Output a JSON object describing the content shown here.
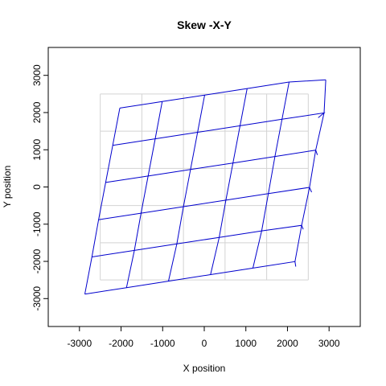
{
  "chart_data": {
    "type": "line",
    "title": "Skew -X-Y",
    "xlabel": "X position",
    "ylabel": "Y position",
    "xlim": [
      -3750,
      3750
    ],
    "ylim": [
      -3750,
      3750
    ],
    "xticks": [
      -3000,
      -2000,
      -1000,
      0,
      1000,
      2000,
      3000
    ],
    "yticks": [
      -3000,
      -2000,
      -1000,
      0,
      1000,
      2000,
      3000
    ],
    "xtick_labels": [
      "-3000",
      "-2000",
      "-1000",
      "0",
      "1000",
      "2000",
      "3000"
    ],
    "ytick_labels": [
      "-3000",
      "-2000",
      "-1000",
      "0",
      "1000",
      "2000",
      "3000"
    ],
    "grid_colors": {
      "reference": "#d3d3d3",
      "skewed": "#0000cd"
    },
    "reference_grid": {
      "x": [
        -2500,
        -1500,
        -500,
        500,
        1500,
        2500
      ],
      "y": [
        -2500,
        -1500,
        -500,
        500,
        1500,
        2500
      ]
    },
    "skewed_grid": {
      "rows": [
        [
          [
            -2870,
            -2880
          ],
          [
            -1870,
            -2705
          ],
          [
            -860,
            -2530
          ],
          [
            150,
            -2355
          ],
          [
            1170,
            -2180
          ],
          [
            2180,
            -2005
          ],
          [
            2200,
            -2140
          ]
        ],
        [
          [
            -2700,
            -1880
          ],
          [
            -1680,
            -1705
          ],
          [
            -660,
            -1530
          ],
          [
            360,
            -1355
          ],
          [
            1380,
            -1180
          ],
          [
            2340,
            -1030
          ],
          [
            2380,
            -1140
          ]
        ],
        [
          [
            -2540,
            -880
          ],
          [
            -1520,
            -705
          ],
          [
            -500,
            -530
          ],
          [
            520,
            -355
          ],
          [
            1540,
            -180
          ],
          [
            2530,
            -10
          ],
          [
            2580,
            -140
          ]
        ],
        [
          [
            -2370,
            120
          ],
          [
            -1350,
            295
          ],
          [
            -330,
            470
          ],
          [
            690,
            645
          ],
          [
            1700,
            820
          ],
          [
            2680,
            990
          ],
          [
            2720,
            860
          ]
        ],
        [
          [
            -2200,
            1120
          ],
          [
            -1180,
            1295
          ],
          [
            -160,
            1470
          ],
          [
            860,
            1645
          ],
          [
            1870,
            1820
          ],
          [
            2880,
            1990
          ],
          [
            2740,
            1860
          ]
        ],
        [
          [
            -2030,
            2120
          ],
          [
            -1010,
            2295
          ],
          [
            10,
            2470
          ],
          [
            1030,
            2645
          ],
          [
            2040,
            2820
          ],
          [
            2920,
            2880
          ]
        ]
      ],
      "cols": [
        [
          [
            -2870,
            -2880
          ],
          [
            -2700,
            -1880
          ],
          [
            -2540,
            -880
          ],
          [
            -2370,
            120
          ],
          [
            -2200,
            1120
          ],
          [
            -2030,
            2120
          ]
        ],
        [
          [
            -1870,
            -2705
          ],
          [
            -1680,
            -1705
          ],
          [
            -1520,
            -705
          ],
          [
            -1350,
            295
          ],
          [
            -1180,
            1295
          ],
          [
            -1010,
            2295
          ]
        ],
        [
          [
            -860,
            -2530
          ],
          [
            -660,
            -1530
          ],
          [
            -500,
            -530
          ],
          [
            -330,
            470
          ],
          [
            -160,
            1470
          ],
          [
            10,
            2470
          ]
        ],
        [
          [
            150,
            -2355
          ],
          [
            360,
            -1355
          ],
          [
            520,
            -355
          ],
          [
            690,
            645
          ],
          [
            860,
            1645
          ],
          [
            1030,
            2645
          ]
        ],
        [
          [
            1170,
            -2180
          ],
          [
            1380,
            -1180
          ],
          [
            1540,
            -180
          ],
          [
            1700,
            820
          ],
          [
            1870,
            1820
          ],
          [
            2040,
            2820
          ]
        ],
        [
          [
            2180,
            -2005
          ],
          [
            2340,
            -1030
          ],
          [
            2530,
            -10
          ],
          [
            2680,
            990
          ],
          [
            2880,
            1990
          ],
          [
            2920,
            2880
          ]
        ]
      ]
    }
  }
}
